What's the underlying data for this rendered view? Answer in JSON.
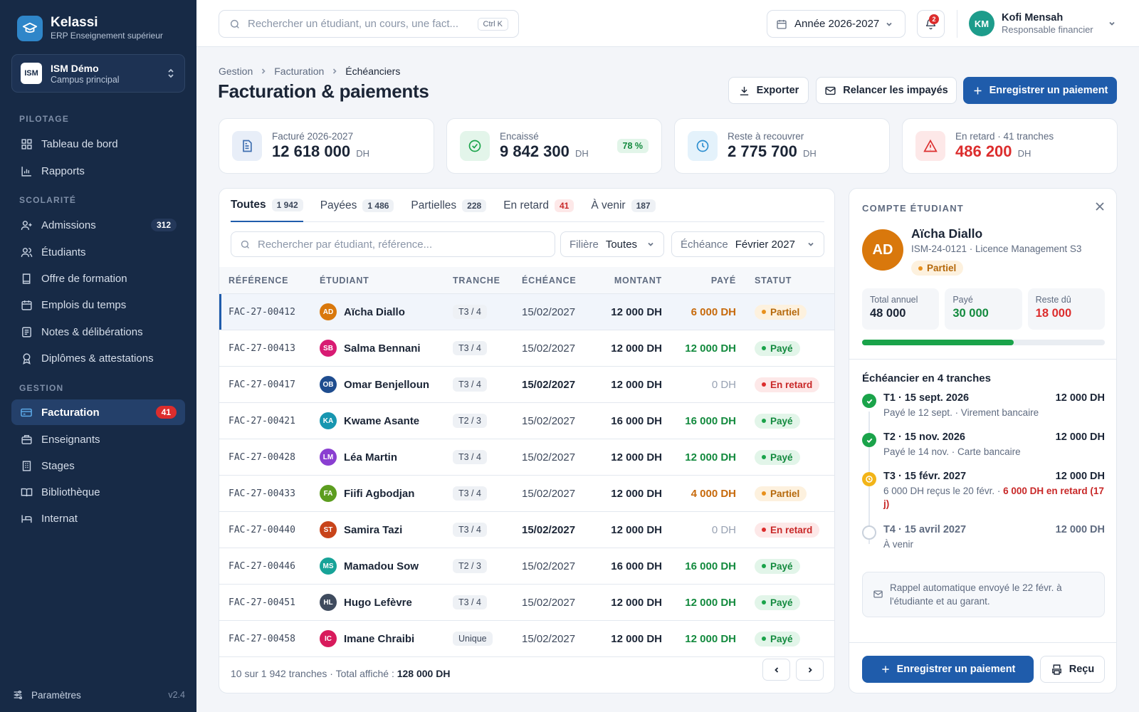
{
  "app": {
    "name": "Kelassi",
    "subtitle": "ERP Enseignement supérieur"
  },
  "campus": {
    "logo": "ISM",
    "name": "ISM Démo",
    "sub": "Campus principal"
  },
  "sidebar": {
    "sections": [
      "PILOTAGE",
      "SCOLARITÉ",
      "GESTION"
    ],
    "items": [
      {
        "label": "Tableau de bord",
        "icon": "dashboard-icon"
      },
      {
        "label": "Rapports",
        "icon": "chart-icon"
      },
      {
        "label": "Admissions",
        "icon": "user-plus-icon",
        "badge": "312"
      },
      {
        "label": "Étudiants",
        "icon": "users-icon"
      },
      {
        "label": "Offre de formation",
        "icon": "book-icon"
      },
      {
        "label": "Emplois du temps",
        "icon": "calendar-icon"
      },
      {
        "label": "Notes & délibérations",
        "icon": "notes-icon"
      },
      {
        "label": "Diplômes & attestations",
        "icon": "award-icon"
      },
      {
        "label": "Facturation",
        "icon": "card-icon",
        "badge": "41",
        "active": true
      },
      {
        "label": "Enseignants",
        "icon": "briefcase-icon"
      },
      {
        "label": "Stages",
        "icon": "building-icon"
      },
      {
        "label": "Bibliothèque",
        "icon": "open-book-icon"
      },
      {
        "label": "Internat",
        "icon": "bed-icon"
      }
    ],
    "footer": {
      "label": "Paramètres",
      "version": "v2.4"
    }
  },
  "topbar": {
    "search_placeholder": "Rechercher un étudiant, un cours, une fact...",
    "shortcut": "Ctrl K",
    "year": "Année 2026-2027",
    "notif_count": "2",
    "user": {
      "initials": "KM",
      "name": "Kofi Mensah",
      "role": "Responsable financier"
    }
  },
  "breadcrumb": [
    "Gestion",
    "Facturation",
    "Échéanciers"
  ],
  "page_title": "Facturation & paiements",
  "actions": {
    "export": "Exporter",
    "remind": "Relancer les impayés",
    "record": "Enregistrer un paiement"
  },
  "kpis": [
    {
      "label": "Facturé 2026-2027",
      "value": "12 618 000",
      "unit": "DH",
      "color": "#3f6fb0"
    },
    {
      "label": "Encaissé",
      "value": "9 842 300",
      "unit": "DH",
      "pill": "78 %",
      "color": "#1aa34a"
    },
    {
      "label": "Reste à recouvrer",
      "value": "2 775 700",
      "unit": "DH",
      "color": "#2d8fd0"
    },
    {
      "label": "En retard · 41 tranches",
      "value": "486 200",
      "unit": "DH",
      "color": "#dc2d2d"
    }
  ],
  "tabs": [
    {
      "label": "Toutes",
      "count": "1 942"
    },
    {
      "label": "Payées",
      "count": "1 486"
    },
    {
      "label": "Partielles",
      "count": "228"
    },
    {
      "label": "En retard",
      "count": "41"
    },
    {
      "label": "À venir",
      "count": "187"
    }
  ],
  "filters": {
    "search_placeholder": "Rechercher par étudiant, référence...",
    "filiere_label": "Filière",
    "filiere_value": "Toutes",
    "echeance_label": "Échéance",
    "echeance_value": "Février 2027"
  },
  "table": {
    "columns": [
      "RÉFÉRENCE",
      "ÉTUDIANT",
      "TRANCHE",
      "ÉCHÉANCE",
      "MONTANT",
      "PAYÉ",
      "STATUT"
    ],
    "rows": [
      {
        "ref": "FAC-27-00412",
        "initials": "AD",
        "avatar": "#d9780c",
        "name": "Aïcha Diallo",
        "tranche": "T3 / 4",
        "echeance": "15/02/2027",
        "montant": "12 000 DH",
        "paye": "6 000 DH",
        "statut": "Partiel"
      },
      {
        "ref": "FAC-27-00413",
        "initials": "SB",
        "avatar": "#d81b73",
        "name": "Salma Bennani",
        "tranche": "T3 / 4",
        "echeance": "15/02/2027",
        "montant": "12 000 DH",
        "paye": "12 000 DH",
        "statut": "Payé"
      },
      {
        "ref": "FAC-27-00417",
        "initials": "OB",
        "avatar": "#1f4d8f",
        "name": "Omar Benjelloun",
        "tranche": "T3 / 4",
        "echeance": "15/02/2027",
        "montant": "12 000 DH",
        "paye": "0 DH",
        "statut": "En retard"
      },
      {
        "ref": "FAC-27-00421",
        "initials": "KA",
        "avatar": "#1796b0",
        "name": "Kwame Asante",
        "tranche": "T2 / 3",
        "echeance": "15/02/2027",
        "montant": "16 000 DH",
        "paye": "16 000 DH",
        "statut": "Payé"
      },
      {
        "ref": "FAC-27-00428",
        "initials": "LM",
        "avatar": "#8a3fd1",
        "name": "Léa Martin",
        "tranche": "T3 / 4",
        "echeance": "15/02/2027",
        "montant": "12 000 DH",
        "paye": "12 000 DH",
        "statut": "Payé"
      },
      {
        "ref": "FAC-27-00433",
        "initials": "FA",
        "avatar": "#5c9d1f",
        "name": "Fiifi Agbodjan",
        "tranche": "T3 / 4",
        "echeance": "15/02/2027",
        "montant": "12 000 DH",
        "paye": "4 000 DH",
        "statut": "Partiel"
      },
      {
        "ref": "FAC-27-00440",
        "initials": "ST",
        "avatar": "#c8441a",
        "name": "Samira Tazi",
        "tranche": "T3 / 4",
        "echeance": "15/02/2027",
        "montant": "12 000 DH",
        "paye": "0 DH",
        "statut": "En retard"
      },
      {
        "ref": "FAC-27-00446",
        "initials": "MS",
        "avatar": "#17a398",
        "name": "Mamadou Sow",
        "tranche": "T2 / 3",
        "echeance": "15/02/2027",
        "montant": "16 000 DH",
        "paye": "16 000 DH",
        "statut": "Payé"
      },
      {
        "ref": "FAC-27-00451",
        "initials": "HL",
        "avatar": "#3f4b5e",
        "name": "Hugo Lefèvre",
        "tranche": "T3 / 4",
        "echeance": "15/02/2027",
        "montant": "12 000 DH",
        "paye": "12 000 DH",
        "statut": "Payé"
      },
      {
        "ref": "FAC-27-00458",
        "initials": "IC",
        "avatar": "#d81b5c",
        "name": "Imane Chraibi",
        "tranche": "Unique",
        "echeance": "15/02/2027",
        "montant": "12 000 DH",
        "paye": "12 000 DH",
        "statut": "Payé"
      }
    ],
    "footer_text": "10 sur 1 942 tranches · Total affiché : ",
    "footer_total": "128 000 DH"
  },
  "panel": {
    "eyebrow": "COMPTE ÉTUDIANT",
    "initials": "AD",
    "name": "Aïcha Diallo",
    "sub": "ISM-24-0121 · Licence Management S3",
    "status": "Partiel",
    "stats": [
      {
        "label": "Total annuel",
        "value": "48 000"
      },
      {
        "label": "Payé",
        "value": "30 000"
      },
      {
        "label": "Reste dû",
        "value": "18 000"
      }
    ],
    "progress": 0.625,
    "schedule_title": "Échéancier en 4 tranches",
    "schedule": [
      {
        "title": "T1 · 15 sept. 2026",
        "amount": "12 000 DH",
        "sub": "Payé le 12 sept. · Virement bancaire",
        "state": "paid"
      },
      {
        "title": "T2 · 15 nov. 2026",
        "amount": "12 000 DH",
        "sub": "Payé le 14 nov. · Carte bancaire",
        "state": "paid"
      },
      {
        "title": "T3 · 15 févr. 2027",
        "amount": "12 000 DH",
        "sub": "6 000 DH reçus le 20 févr. · ",
        "late": "6 000 DH en retard (17 j)",
        "state": "partial"
      },
      {
        "title": "T4 · 15 avril 2027",
        "amount": "12 000 DH",
        "sub": "À venir",
        "state": "upcoming"
      }
    ],
    "note": "Rappel automatique envoyé le 22 févr. à l'étudiante et au garant.",
    "record_button": "Enregistrer un paiement",
    "receipt_button": "Reçu"
  }
}
